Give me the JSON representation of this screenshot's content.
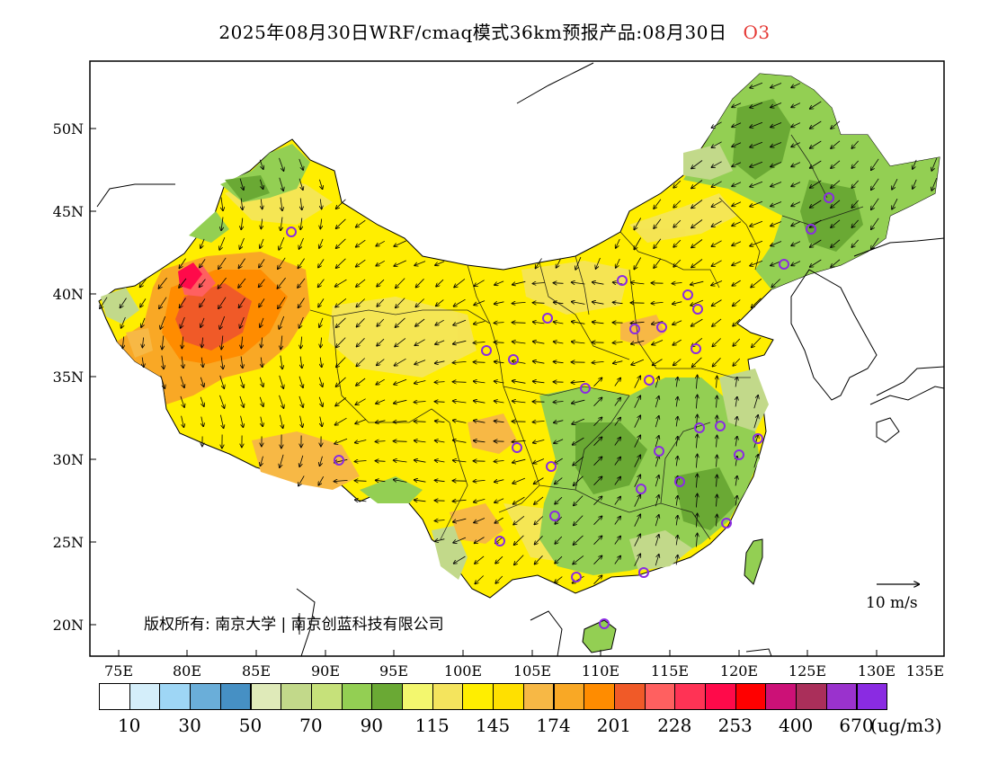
{
  "title": {
    "main": "2025年08月30日WRF/cmaq模式36km预报产品:08月30日",
    "species": "O3"
  },
  "axes": {
    "lat_labels": [
      "50N",
      "45N",
      "40N",
      "35N",
      "30N",
      "25N",
      "20N"
    ],
    "lon_labels": [
      "75E",
      "80E",
      "85E",
      "90E",
      "95E",
      "100E",
      "105E",
      "110E",
      "115E",
      "120E",
      "125E",
      "130E",
      "135E"
    ]
  },
  "copyright": "版权所有: 南京大学 | 南京创蓝科技有限公司",
  "wind_scale": "10 m/s",
  "colorbar": {
    "colors": [
      "#ffffff",
      "#d4eefa",
      "#9ed6f5",
      "#6aaed9",
      "#4690c4",
      "#dfeab9",
      "#c2d98a",
      "#c6e17a",
      "#93cf53",
      "#6aa934",
      "#f3f76e",
      "#f4e45d",
      "#ffee00",
      "#ffe000",
      "#f7b845",
      "#f9a825",
      "#ff8c00",
      "#f05a28",
      "#ff6060",
      "#ff3355",
      "#ff0a4a",
      "#ff0000",
      "#cc1177",
      "#aa2f5a",
      "#9a32cd",
      "#8a2be2"
    ],
    "labels": [
      "10",
      "30",
      "50",
      "70",
      "90",
      "115",
      "145",
      "174",
      "201",
      "228",
      "253",
      "400",
      "670"
    ],
    "unit": "(ug/m3)"
  },
  "legend_colors": {
    "accent_title_species": "#e53935",
    "station_marker": "#8a2be2"
  }
}
